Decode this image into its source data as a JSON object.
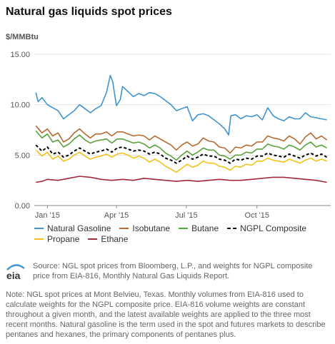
{
  "title": "Natural gas liquids spot prices",
  "unit_label": "$/MMBtu",
  "source_text": "Source: NGL spot prices from Bloomberg, L.P., and weights for NGPL composite price from EIA-816, Monthly Natural Gas Liquids Report.",
  "note_text": "Note: NGL spot prices at Mont Belvieu, Texas. Monthly volumes from EIA-816 used to calculate weights for the NGPL composite price. EIA-816 volume weights are constant throughout a given month, and the latest available weights are applied to the three most recent months. Natural gasoline is the term used in the spot and futures markets to describe pentanes and hexanes, the primary components of pentanes plus.",
  "logo_text": "eia",
  "chart_data": {
    "type": "line",
    "title": "Natural gas liquids spot prices",
    "ylabel": "$/MMBtu",
    "xlabel": "",
    "ylim": [
      0,
      15
    ],
    "yticks": [
      0,
      5,
      10,
      15
    ],
    "ytick_labels": [
      "0.00",
      "5.00",
      "10.00",
      "15.00"
    ],
    "xlim": [
      "2014-12-15",
      "2016-01-05"
    ],
    "xticks": [
      "2015-01-01",
      "2015-04-01",
      "2015-07-01",
      "2015-10-01"
    ],
    "xtick_labels": [
      "Jan '15",
      "Apr '15",
      "Jul '15",
      "Oct '15"
    ],
    "grid": "horizontal",
    "legend_position": "bottom",
    "series": [
      {
        "name": "Natural Gasoline",
        "color": "#3f94d0",
        "dash": "solid",
        "x": [
          "2014-12-17",
          "2014-12-20",
          "2014-12-25",
          "2015-01-01",
          "2015-01-08",
          "2015-01-15",
          "2015-01-22",
          "2015-01-29",
          "2015-02-05",
          "2015-02-12",
          "2015-02-19",
          "2015-02-26",
          "2015-03-05",
          "2015-03-12",
          "2015-03-19",
          "2015-03-24",
          "2015-03-27",
          "2015-04-01",
          "2015-04-06",
          "2015-04-09",
          "2015-04-16",
          "2015-04-23",
          "2015-04-30",
          "2015-05-07",
          "2015-05-14",
          "2015-05-21",
          "2015-05-28",
          "2015-06-04",
          "2015-06-11",
          "2015-06-18",
          "2015-06-25",
          "2015-07-02",
          "2015-07-09",
          "2015-07-16",
          "2015-07-23",
          "2015-07-30",
          "2015-08-06",
          "2015-08-13",
          "2015-08-20",
          "2015-08-25",
          "2015-08-28",
          "2015-09-03",
          "2015-09-10",
          "2015-09-17",
          "2015-09-24",
          "2015-10-01",
          "2015-10-08",
          "2015-10-15",
          "2015-10-22",
          "2015-10-29",
          "2015-11-05",
          "2015-11-12",
          "2015-11-19",
          "2015-11-26",
          "2015-12-03",
          "2015-12-10",
          "2015-12-17",
          "2015-12-24",
          "2015-12-31"
        ],
        "values": [
          11.2,
          10.3,
          10.7,
          10.0,
          9.7,
          9.4,
          8.6,
          9.0,
          9.4,
          10.0,
          9.6,
          9.2,
          9.6,
          9.9,
          11.2,
          12.9,
          12.3,
          9.9,
          10.5,
          11.8,
          11.3,
          10.8,
          11.1,
          10.9,
          11.2,
          11.1,
          10.8,
          10.4,
          10.0,
          9.4,
          9.6,
          9.8,
          8.4,
          9.0,
          9.1,
          8.9,
          8.5,
          8.1,
          7.6,
          7.0,
          8.9,
          9.0,
          8.6,
          8.9,
          8.8,
          9.0,
          8.5,
          9.7,
          8.9,
          8.6,
          8.4,
          8.8,
          8.6,
          8.6,
          9.2,
          8.8,
          8.7,
          8.6,
          8.5
        ]
      },
      {
        "name": "Isobutane",
        "color": "#b66a33",
        "dash": "solid",
        "x": [
          "2014-12-17",
          "2014-12-25",
          "2015-01-01",
          "2015-01-08",
          "2015-01-15",
          "2015-01-22",
          "2015-01-29",
          "2015-02-05",
          "2015-02-12",
          "2015-02-19",
          "2015-02-26",
          "2015-03-05",
          "2015-03-12",
          "2015-03-19",
          "2015-03-26",
          "2015-04-02",
          "2015-04-09",
          "2015-04-16",
          "2015-04-23",
          "2015-04-30",
          "2015-05-07",
          "2015-05-14",
          "2015-05-21",
          "2015-05-28",
          "2015-06-04",
          "2015-06-11",
          "2015-06-18",
          "2015-06-25",
          "2015-07-02",
          "2015-07-09",
          "2015-07-16",
          "2015-07-23",
          "2015-07-30",
          "2015-08-06",
          "2015-08-13",
          "2015-08-20",
          "2015-08-27",
          "2015-09-03",
          "2015-09-10",
          "2015-09-17",
          "2015-09-24",
          "2015-10-01",
          "2015-10-08",
          "2015-10-15",
          "2015-10-22",
          "2015-10-29",
          "2015-11-05",
          "2015-11-12",
          "2015-11-19",
          "2015-11-26",
          "2015-12-03",
          "2015-12-10",
          "2015-12-17",
          "2015-12-24",
          "2015-12-31"
        ],
        "values": [
          7.9,
          7.2,
          7.6,
          6.9,
          7.2,
          6.3,
          6.6,
          7.2,
          7.6,
          7.1,
          6.7,
          7.1,
          7.1,
          7.3,
          6.9,
          7.3,
          7.3,
          7.1,
          6.9,
          7.0,
          6.9,
          6.5,
          6.9,
          6.6,
          6.3,
          6.0,
          5.5,
          6.0,
          6.3,
          5.9,
          6.1,
          6.7,
          6.4,
          6.3,
          5.8,
          5.7,
          5.2,
          5.8,
          5.7,
          6.0,
          5.9,
          6.3,
          6.3,
          6.9,
          6.7,
          6.6,
          6.4,
          6.9,
          6.6,
          6.1,
          6.8,
          7.2,
          6.6,
          6.9,
          6.5
        ]
      },
      {
        "name": "Butane",
        "color": "#5aa13b",
        "dash": "solid",
        "x": [
          "2014-12-17",
          "2014-12-25",
          "2015-01-01",
          "2015-01-08",
          "2015-01-15",
          "2015-01-22",
          "2015-01-29",
          "2015-02-05",
          "2015-02-12",
          "2015-02-19",
          "2015-02-26",
          "2015-03-05",
          "2015-03-12",
          "2015-03-19",
          "2015-03-26",
          "2015-04-02",
          "2015-04-09",
          "2015-04-16",
          "2015-04-23",
          "2015-04-30",
          "2015-05-07",
          "2015-05-14",
          "2015-05-21",
          "2015-05-28",
          "2015-06-04",
          "2015-06-11",
          "2015-06-18",
          "2015-06-25",
          "2015-07-02",
          "2015-07-09",
          "2015-07-16",
          "2015-07-23",
          "2015-07-30",
          "2015-08-06",
          "2015-08-13",
          "2015-08-20",
          "2015-08-27",
          "2015-09-03",
          "2015-09-10",
          "2015-09-17",
          "2015-09-24",
          "2015-10-01",
          "2015-10-08",
          "2015-10-15",
          "2015-10-22",
          "2015-10-29",
          "2015-11-05",
          "2015-11-12",
          "2015-11-19",
          "2015-11-26",
          "2015-12-03",
          "2015-12-10",
          "2015-12-17",
          "2015-12-24",
          "2015-12-31"
        ],
        "values": [
          7.4,
          6.7,
          7.1,
          6.3,
          6.5,
          5.8,
          6.1,
          6.6,
          7.0,
          6.5,
          6.2,
          6.4,
          6.5,
          6.6,
          6.2,
          6.6,
          6.6,
          6.4,
          6.2,
          6.3,
          6.1,
          5.7,
          6.0,
          5.7,
          5.2,
          4.9,
          4.5,
          5.0,
          5.4,
          5.0,
          5.3,
          5.7,
          5.5,
          5.5,
          5.0,
          4.9,
          4.6,
          5.0,
          5.0,
          5.3,
          5.2,
          5.6,
          5.6,
          6.1,
          5.9,
          5.8,
          5.6,
          6.0,
          5.8,
          5.5,
          6.0,
          6.3,
          5.8,
          6.0,
          5.7
        ]
      },
      {
        "name": "NGPL Composite",
        "color": "#000000",
        "dash": "dashed",
        "x": [
          "2014-12-17",
          "2014-12-25",
          "2015-01-01",
          "2015-01-08",
          "2015-01-15",
          "2015-01-22",
          "2015-01-29",
          "2015-02-05",
          "2015-02-12",
          "2015-02-19",
          "2015-02-26",
          "2015-03-05",
          "2015-03-12",
          "2015-03-19",
          "2015-03-26",
          "2015-04-02",
          "2015-04-09",
          "2015-04-16",
          "2015-04-23",
          "2015-04-30",
          "2015-05-07",
          "2015-05-14",
          "2015-05-21",
          "2015-05-28",
          "2015-06-04",
          "2015-06-11",
          "2015-06-18",
          "2015-06-25",
          "2015-07-02",
          "2015-07-09",
          "2015-07-16",
          "2015-07-23",
          "2015-07-30",
          "2015-08-06",
          "2015-08-13",
          "2015-08-20",
          "2015-08-27",
          "2015-09-03",
          "2015-09-10",
          "2015-09-17",
          "2015-09-24",
          "2015-10-01",
          "2015-10-08",
          "2015-10-15",
          "2015-10-22",
          "2015-10-29",
          "2015-11-05",
          "2015-11-12",
          "2015-11-19",
          "2015-11-26",
          "2015-12-03",
          "2015-12-10",
          "2015-12-17",
          "2015-12-24",
          "2015-12-31"
        ],
        "values": [
          6.0,
          5.4,
          5.8,
          5.1,
          5.3,
          4.8,
          5.0,
          5.4,
          5.7,
          5.4,
          5.1,
          5.3,
          5.4,
          5.6,
          5.3,
          5.7,
          5.8,
          5.6,
          5.4,
          5.5,
          5.4,
          5.1,
          5.3,
          5.1,
          4.7,
          4.5,
          4.2,
          4.5,
          4.9,
          4.6,
          4.8,
          5.1,
          4.9,
          4.9,
          4.6,
          4.5,
          4.2,
          4.6,
          4.5,
          4.7,
          4.6,
          4.9,
          4.9,
          5.2,
          5.0,
          4.9,
          4.8,
          5.1,
          4.9,
          4.7,
          5.0,
          5.2,
          4.9,
          5.1,
          4.8
        ]
      },
      {
        "name": "Propane",
        "color": "#f2c21b",
        "dash": "solid",
        "x": [
          "2014-12-17",
          "2014-12-25",
          "2015-01-01",
          "2015-01-08",
          "2015-01-15",
          "2015-01-22",
          "2015-01-29",
          "2015-02-05",
          "2015-02-12",
          "2015-02-19",
          "2015-02-26",
          "2015-03-05",
          "2015-03-12",
          "2015-03-19",
          "2015-03-26",
          "2015-04-02",
          "2015-04-09",
          "2015-04-16",
          "2015-04-23",
          "2015-04-30",
          "2015-05-07",
          "2015-05-14",
          "2015-05-21",
          "2015-05-28",
          "2015-06-04",
          "2015-06-11",
          "2015-06-18",
          "2015-06-25",
          "2015-07-02",
          "2015-07-09",
          "2015-07-16",
          "2015-07-23",
          "2015-07-30",
          "2015-08-06",
          "2015-08-13",
          "2015-08-20",
          "2015-08-27",
          "2015-09-03",
          "2015-09-10",
          "2015-09-17",
          "2015-09-24",
          "2015-10-01",
          "2015-10-08",
          "2015-10-15",
          "2015-10-22",
          "2015-10-29",
          "2015-11-05",
          "2015-11-12",
          "2015-11-19",
          "2015-11-26",
          "2015-12-03",
          "2015-12-10",
          "2015-12-17",
          "2015-12-24",
          "2015-12-31"
        ],
        "values": [
          5.5,
          4.9,
          5.3,
          4.6,
          4.9,
          4.4,
          4.6,
          5.0,
          5.3,
          4.9,
          4.6,
          4.8,
          4.9,
          5.1,
          4.8,
          5.1,
          5.2,
          5.0,
          4.7,
          4.9,
          4.7,
          4.3,
          4.6,
          4.3,
          3.9,
          3.6,
          3.3,
          3.7,
          4.1,
          3.8,
          4.0,
          4.4,
          4.2,
          4.2,
          3.9,
          3.8,
          3.5,
          3.9,
          3.8,
          4.1,
          4.0,
          4.4,
          4.4,
          4.7,
          4.5,
          4.4,
          4.3,
          4.6,
          4.4,
          4.2,
          4.5,
          4.7,
          4.4,
          4.6,
          4.4
        ]
      },
      {
        "name": "Ethane",
        "color": "#a3283a",
        "dash": "solid",
        "x": [
          "2014-12-17",
          "2014-12-25",
          "2015-01-01",
          "2015-01-15",
          "2015-01-29",
          "2015-02-12",
          "2015-02-26",
          "2015-03-12",
          "2015-03-26",
          "2015-04-09",
          "2015-04-23",
          "2015-05-07",
          "2015-05-21",
          "2015-06-04",
          "2015-06-18",
          "2015-07-02",
          "2015-07-16",
          "2015-07-30",
          "2015-08-13",
          "2015-08-27",
          "2015-09-10",
          "2015-09-24",
          "2015-10-08",
          "2015-10-22",
          "2015-11-05",
          "2015-11-19",
          "2015-12-03",
          "2015-12-17",
          "2015-12-31"
        ],
        "values": [
          2.3,
          2.4,
          2.6,
          2.5,
          2.7,
          2.9,
          2.8,
          2.6,
          2.5,
          2.6,
          2.5,
          2.7,
          2.6,
          2.5,
          2.4,
          2.5,
          2.4,
          2.5,
          2.6,
          2.5,
          2.5,
          2.6,
          2.7,
          2.8,
          2.8,
          2.7,
          2.6,
          2.5,
          2.3
        ]
      }
    ]
  }
}
